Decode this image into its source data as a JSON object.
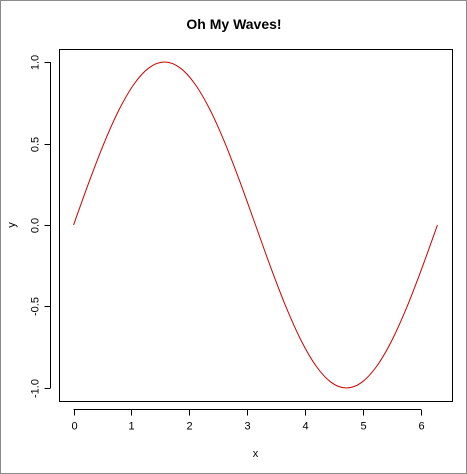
{
  "chart_data": {
    "type": "line",
    "title": "Oh My Waves!",
    "xlabel": "x",
    "ylabel": "y",
    "xlim": [
      0,
      6.283185
    ],
    "ylim": [
      -1,
      1
    ],
    "x_ticks": [
      0,
      1,
      2,
      3,
      4,
      5,
      6
    ],
    "x_tick_labels": [
      "0",
      "1",
      "2",
      "3",
      "4",
      "5",
      "6"
    ],
    "y_ticks": [
      -1,
      -0.5,
      0,
      0.5,
      1
    ],
    "y_tick_labels": [
      "-1.0",
      "-0.5",
      "0.0",
      "0.5",
      "1.0"
    ],
    "grid": false,
    "series": [
      {
        "color": "#cc0000",
        "x": [
          0,
          0.2618,
          0.5236,
          0.7854,
          1.0472,
          1.309,
          1.5708,
          1.8326,
          2.0944,
          2.3562,
          2.618,
          2.8798,
          3.1416,
          3.4034,
          3.6652,
          3.927,
          4.1888,
          4.4506,
          4.7124,
          4.9742,
          5.236,
          5.4978,
          5.7596,
          6.0214,
          6.2832
        ],
        "y": [
          0,
          0.2588,
          0.5,
          0.7071,
          0.866,
          0.9659,
          1,
          0.9659,
          0.866,
          0.7071,
          0.5,
          0.2588,
          0,
          -0.2588,
          -0.5,
          -0.7071,
          -0.866,
          -0.9659,
          -1,
          -0.9659,
          -0.866,
          -0.7071,
          -0.5,
          -0.2588,
          0
        ]
      }
    ]
  }
}
